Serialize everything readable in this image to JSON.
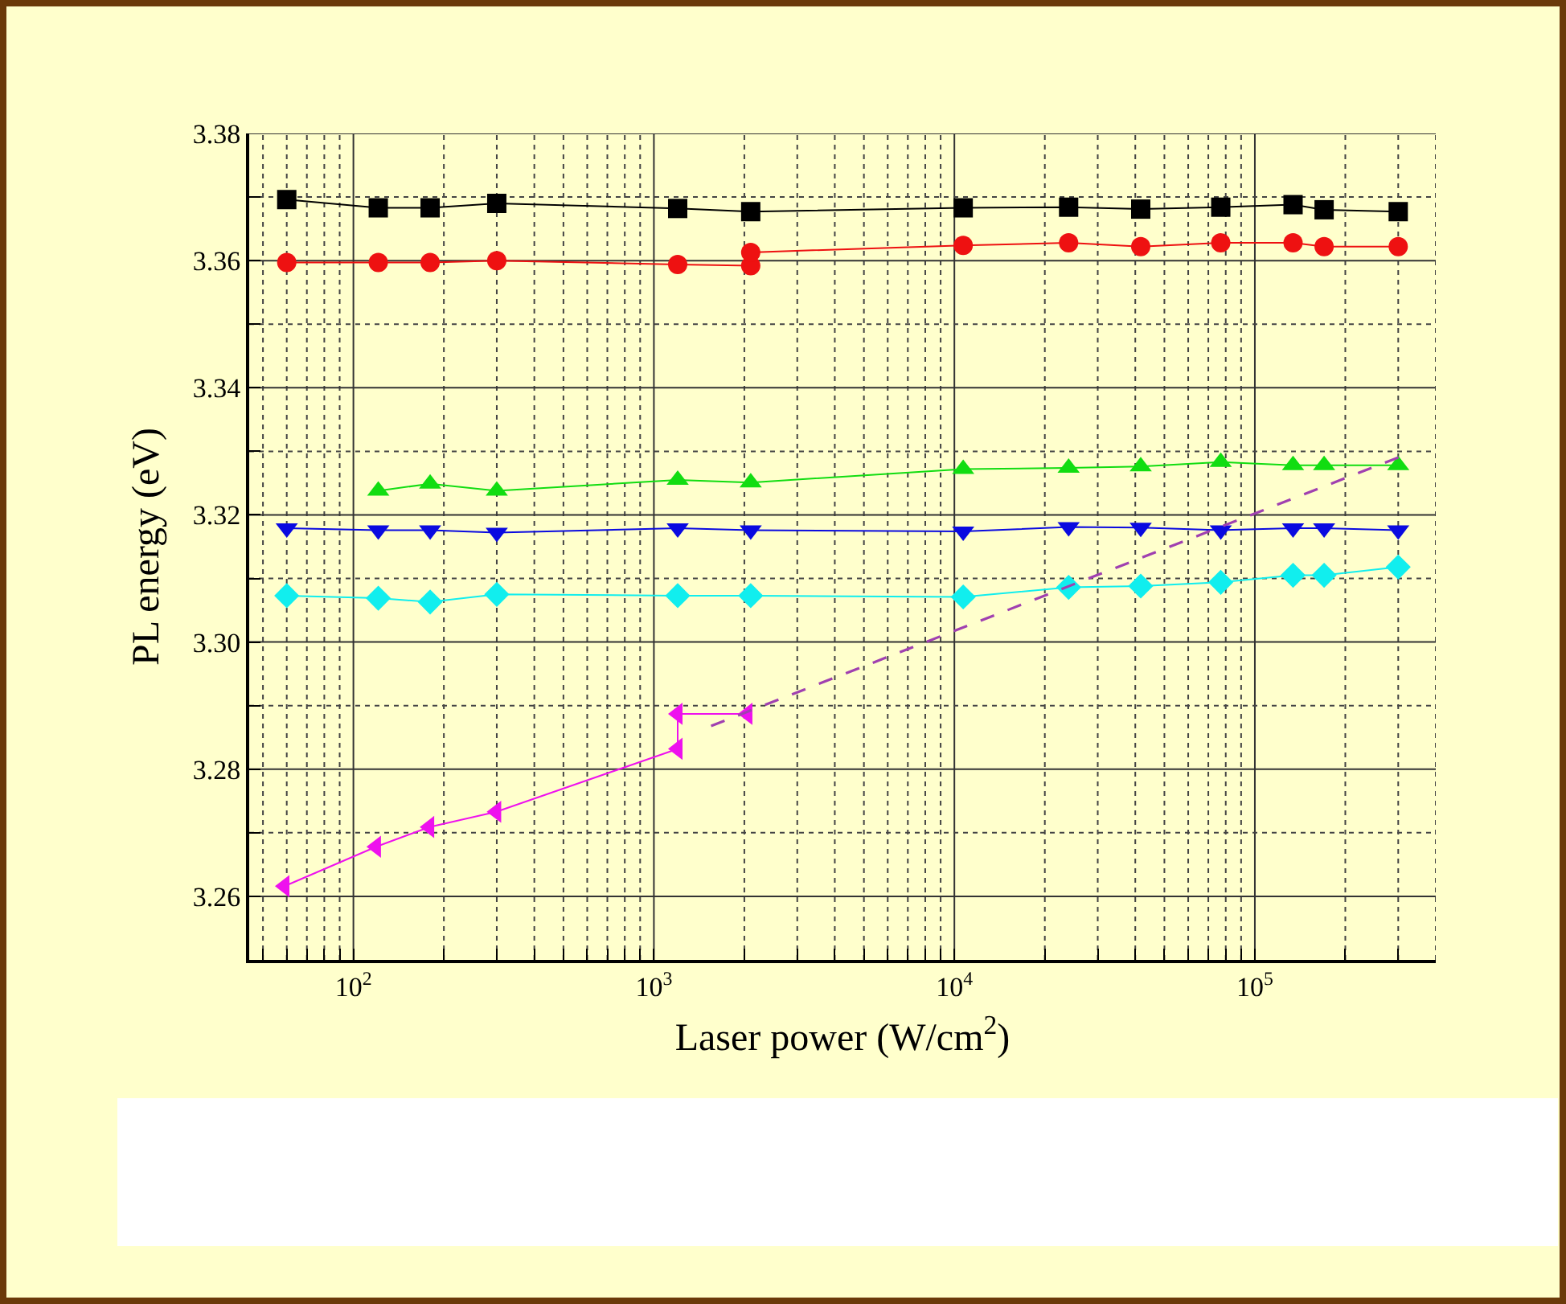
{
  "chart_data": {
    "type": "line",
    "xlabel": "Laser power (W/cm$^{2}$)",
    "ylabel": "PL energy (eV)",
    "log": "x",
    "grid": true,
    "line_style": "solid",
    "xlim": [
      45,
      400000
    ],
    "xticks": [
      {
        "value": 50,
        "label": null
      },
      {
        "value": 60,
        "label": null
      },
      {
        "value": 70,
        "label": null
      },
      {
        "value": 80,
        "label": null
      },
      {
        "value": 90,
        "label": null
      },
      {
        "value": 100,
        "label": "10$^{2}$"
      },
      {
        "value": 200,
        "label": null
      },
      {
        "value": 300,
        "label": null
      },
      {
        "value": 400,
        "label": null
      },
      {
        "value": 500,
        "label": null
      },
      {
        "value": 600,
        "label": null
      },
      {
        "value": 700,
        "label": null
      },
      {
        "value": 800,
        "label": null
      },
      {
        "value": 900,
        "label": null
      },
      {
        "value": 1000,
        "label": "10$^{3}$"
      },
      {
        "value": 2000,
        "label": null
      },
      {
        "value": 3000,
        "label": null
      },
      {
        "value": 4000,
        "label": null
      },
      {
        "value": 5000,
        "label": null
      },
      {
        "value": 6000,
        "label": null
      },
      {
        "value": 7000,
        "label": null
      },
      {
        "value": 8000,
        "label": null
      },
      {
        "value": 9000,
        "label": null
      },
      {
        "value": 10000,
        "label": "10$^{4}$"
      },
      {
        "value": 20000,
        "label": null
      },
      {
        "value": 30000,
        "label": null
      },
      {
        "value": 40000,
        "label": null
      },
      {
        "value": 50000,
        "label": null
      },
      {
        "value": 60000,
        "label": null
      },
      {
        "value": 70000,
        "label": null
      },
      {
        "value": 80000,
        "label": null
      },
      {
        "value": 90000,
        "label": null
      },
      {
        "value": 100000,
        "label": "10$^{5}$"
      },
      {
        "value": 200000,
        "label": null
      },
      {
        "value": 300000,
        "label": null
      },
      {
        "value": 400000,
        "label": null
      }
    ],
    "ylim": [
      3.25,
      3.38
    ],
    "yticks": [
      3.26,
      {
        "value": 3.27,
        "label": null
      },
      3.28,
      {
        "value": 3.29,
        "label": null
      },
      {
        "value": 3.3,
        "label": "3.30"
      },
      {
        "value": 3.31,
        "label": null
      },
      3.32,
      {
        "value": 3.33,
        "label": null
      },
      3.34,
      {
        "value": 3.35,
        "label": null
      },
      3.36,
      {
        "value": 3.37,
        "label": null
      },
      3.38
    ],
    "series": [
      {
        "color": "#000000",
        "marker": "square",
        "x": [
          60,
          121,
          180,
          300,
          1200,
          2100,
          10700,
          24000,
          41700,
          77000,
          134000,
          170000,
          300000
        ],
        "values": [
          3.3696,
          3.3683,
          3.3683,
          3.369,
          3.3682,
          3.3677,
          3.3683,
          3.3684,
          3.3681,
          3.3684,
          3.3688,
          3.368,
          3.3677
        ]
      },
      {
        "color": "#ee1111",
        "marker": "circle",
        "x": [
          60,
          121,
          180,
          300,
          1200,
          2100,
          2100,
          10700,
          24000,
          41700,
          77000,
          134000,
          170000,
          300000
        ],
        "values": [
          3.3597,
          3.3597,
          3.3597,
          3.36,
          3.3594,
          3.3592,
          3.3613,
          3.3624,
          3.3628,
          3.3622,
          3.3628,
          3.3628,
          3.3622,
          3.3622
        ]
      },
      {
        "color": "#11dd11",
        "marker": "triangle",
        "x": [
          121,
          180,
          300,
          1200,
          2100,
          10700,
          24000,
          41700,
          77000,
          134000,
          170000,
          300000
        ],
        "values": [
          3.3238,
          3.3249,
          3.3238,
          3.3255,
          3.3251,
          3.3272,
          3.3274,
          3.3276,
          3.3283,
          3.3278,
          3.3278,
          3.3278
        ]
      },
      {
        "color": "#0a0ae0",
        "marker": "triangle-down",
        "x": [
          60,
          121,
          180,
          300,
          1200,
          2100,
          10700,
          24000,
          41700,
          77000,
          134000,
          170000,
          300000
        ],
        "values": [
          3.3179,
          3.3176,
          3.3176,
          3.3172,
          3.3179,
          3.3176,
          3.3174,
          3.3181,
          3.318,
          3.3176,
          3.3179,
          3.3179,
          3.3176
        ]
      },
      {
        "color": "#11eeee",
        "marker": "diamond",
        "x": [
          60,
          121,
          180,
          300,
          1200,
          2100,
          10700,
          24000,
          41700,
          77000,
          134000,
          170000,
          300000
        ],
        "values": [
          3.3073,
          3.3069,
          3.3063,
          3.3075,
          3.3073,
          3.3073,
          3.3071,
          3.3086,
          3.3088,
          3.3094,
          3.3105,
          3.3105,
          3.3118
        ]
      },
      {
        "color": "#ee11ee",
        "marker": "triangle-left",
        "x": [
          59,
          119,
          179,
          299,
          1200,
          1200,
          2050
        ],
        "values": [
          3.2616,
          3.2678,
          3.2709,
          3.2733,
          3.2832,
          3.2887,
          3.2887
        ]
      },
      {
        "color": "#a040b0",
        "marker": "none",
        "line_style": "dashed",
        "x": [
          1550,
          310000
        ],
        "values": [
          3.2868,
          3.3293
        ]
      }
    ]
  }
}
